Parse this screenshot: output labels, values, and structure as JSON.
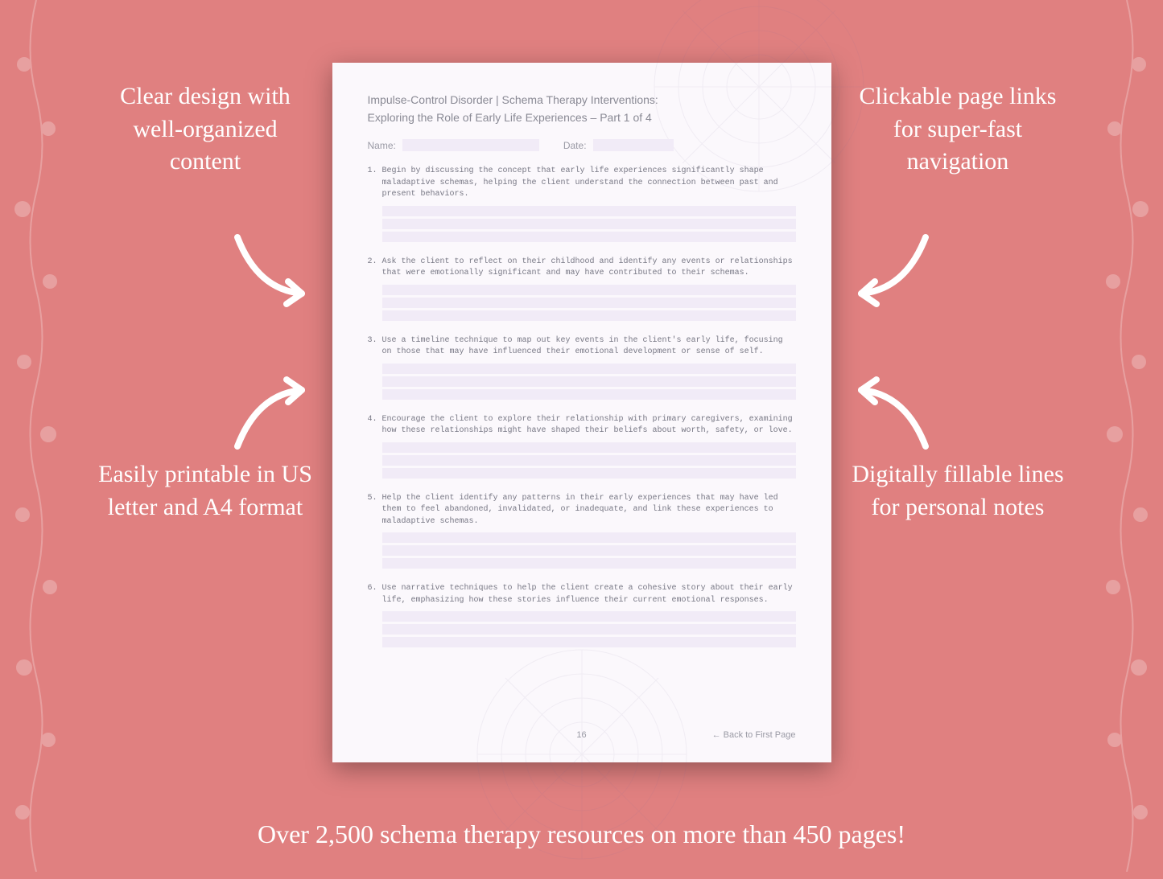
{
  "background_color": "#e08080",
  "text_color": "#ffffff",
  "callouts": {
    "top_left": "Clear design with well-organized content",
    "top_right": "Clickable page links for super-fast navigation",
    "bottom_left": "Easily printable in US letter and A4 format",
    "bottom_right": "Digitally fillable lines for personal notes"
  },
  "callout_style": {
    "fontsize": 30,
    "font_family": "Georgia",
    "color": "#ffffff",
    "line_height": 1.35
  },
  "arrow_color": "#ffffff",
  "arrow_stroke_width": 8,
  "banner": "Over 2,500 schema therapy resources on more than 450 pages!",
  "banner_style": {
    "fontsize": 32,
    "color": "#ffffff"
  },
  "worksheet": {
    "page_bg": "#fbf8fc",
    "fill_line_bg": "#f1ebf7",
    "text_color": "#7a7a85",
    "title_line1": "Impulse-Control Disorder | Schema Therapy Interventions:",
    "title_line2": "Exploring the Role of Early Life Experiences   – Part 1 of 4",
    "name_label": "Name:",
    "date_label": "Date:",
    "questions": [
      "Begin by discussing the concept that early life experiences significantly shape maladaptive schemas, helping the client understand the connection between past and present behaviors.",
      "Ask the client to reflect on their childhood and identify any events or relationships that were emotionally significant and may have contributed to their schemas.",
      "Use a timeline technique to map out key events in the client's early life, focusing on those that may have influenced their emotional development or sense of self.",
      "Encourage the client to explore their relationship with primary caregivers, examining how these relationships might have shaped their beliefs about worth, safety, or love.",
      "Help the client identify any patterns in their early experiences that may have led them to feel abandoned, invalidated, or inadequate, and link these experiences to maladaptive schemas.",
      "Use narrative techniques to help the client create a cohesive story about their early life, emphasizing how these stories influence their current emotional responses."
    ],
    "fill_lines_per_question": 3,
    "page_number": "16",
    "back_link": "← Back to First Page",
    "title_fontsize": 14,
    "label_fontsize": 12,
    "question_fontsize": 10,
    "question_font": "Courier New"
  },
  "floral_opacity": 0.25,
  "mandala_opacity": 0.08
}
